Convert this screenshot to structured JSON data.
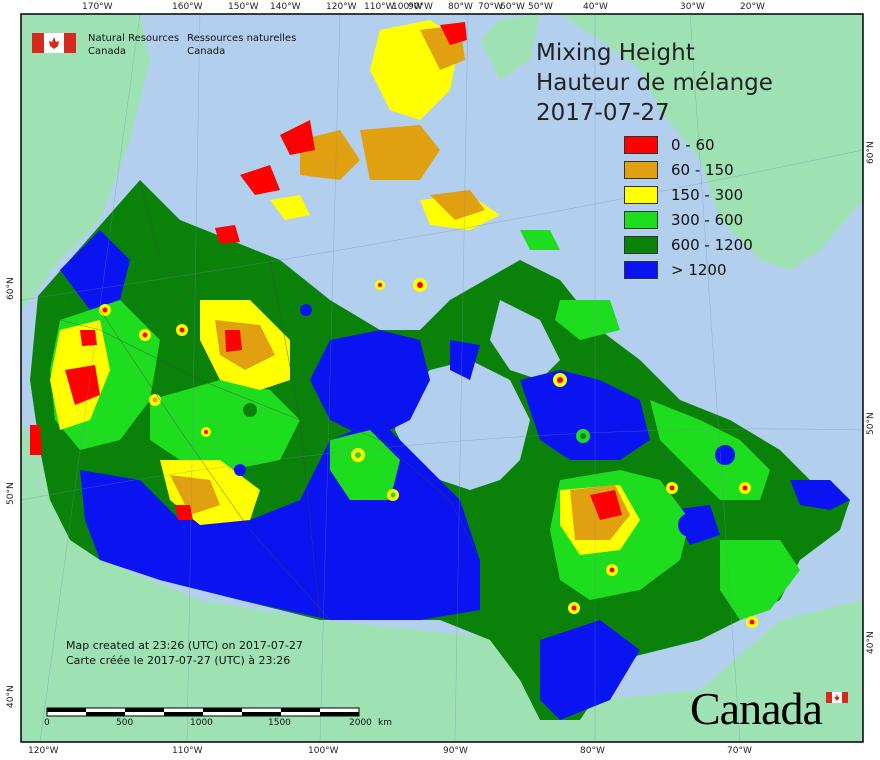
{
  "header": {
    "title_en": "Mixing Height",
    "title_fr": "Hauteur de mélange",
    "date": "2017-07-27"
  },
  "agency": {
    "name_en_1": "Natural Resources",
    "name_en_2": "Canada",
    "name_fr_1": "Ressources naturelles",
    "name_fr_2": "Canada",
    "wordmark": "Canada"
  },
  "legend": {
    "items": [
      {
        "label": "0 - 60",
        "color": "#ff0000"
      },
      {
        "label": "60 - 150",
        "color": "#e0a010"
      },
      {
        "label": "150 - 300",
        "color": "#ffff00"
      },
      {
        "label": "300 - 600",
        "color": "#1edc1e"
      },
      {
        "label": "600 - 1200",
        "color": "#0a820a"
      },
      {
        "label": "> 1200",
        "color": "#0a14f0"
      }
    ]
  },
  "credit": {
    "line_en": "Map created at 23:26 (UTC) on 2017-07-27",
    "line_fr": "Carte créée le 2017-07-27 (UTC) à 23:26"
  },
  "scale": {
    "labels": [
      "0",
      "500",
      "1000",
      "1500",
      "2000"
    ],
    "unit": "km"
  },
  "graticule": {
    "top_lon": [
      "170°W",
      "160°W",
      "150°W",
      "140°W",
      "120°W",
      "110°W",
      "100°W",
      "90°W",
      "80°W",
      "70°W",
      "60°W",
      "50°W",
      "40°W",
      "30°W",
      "20°W"
    ],
    "bottom_lon": [
      "120°W",
      "110°W",
      "100°W",
      "90°W",
      "80°W",
      "70°W"
    ],
    "left_lat": [
      "60°N",
      "50°N",
      "40°N"
    ],
    "right_lat": [
      "60°N",
      "50°N",
      "40°N"
    ]
  },
  "colors": {
    "ocean": "#b3cfee",
    "land": "#9ee2b4",
    "frame": "#000000"
  }
}
